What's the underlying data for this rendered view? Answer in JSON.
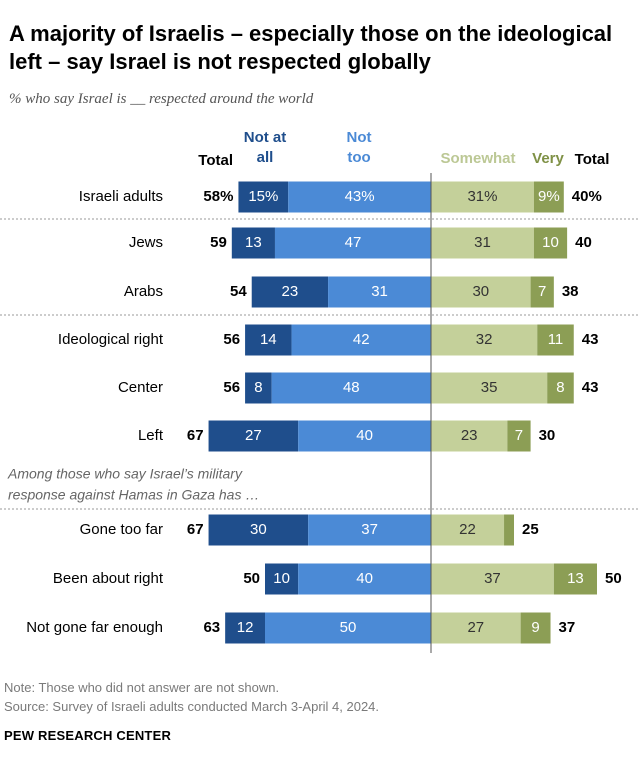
{
  "title": "A majority of Israelis – especially those on the ideological left – say Israel is not respected globally",
  "subtitle": "% who say Israel is __ respected around the world",
  "colors": {
    "not_at_all": "#1f4e8c",
    "not_too": "#4b8ad6",
    "somewhat": "#c4d09a",
    "very": "#8c9e55",
    "not_at_all_text": "#1f4e8c",
    "not_too_text": "#4b8ad6",
    "somewhat_text": "#bcc895",
    "very_text": "#7f9146"
  },
  "chart_data": {
    "type": "bar",
    "layout": "diverging-stacked",
    "headers": {
      "total_left": "Total",
      "not_at_all": [
        "Not at",
        "all"
      ],
      "not_too": [
        "Not",
        "too"
      ],
      "somewhat": "Somewhat",
      "very": "Very",
      "total_right": "Total"
    },
    "series": [
      {
        "name": "Not at all",
        "side": "negative"
      },
      {
        "name": "Not too",
        "side": "negative"
      },
      {
        "name": "Somewhat",
        "side": "positive"
      },
      {
        "name": "Very",
        "side": "positive"
      }
    ],
    "group_note": [
      "Among those who say Israel’s military",
      "response against Hamas in Gaza has …"
    ],
    "rows": [
      {
        "label": "Israeli adults",
        "not_at_all": 15,
        "not_too": 43,
        "somewhat": 31,
        "very": 9,
        "total_neg": 58,
        "total_pos": 40,
        "percent_labels": true
      },
      {
        "label": "Jews",
        "not_at_all": 13,
        "not_too": 47,
        "somewhat": 31,
        "very": 10,
        "total_neg": 59,
        "total_pos": 40
      },
      {
        "label": "Arabs",
        "not_at_all": 23,
        "not_too": 31,
        "somewhat": 30,
        "very": 7,
        "total_neg": 54,
        "total_pos": 38
      },
      {
        "label": "Ideological right",
        "not_at_all": 14,
        "not_too": 42,
        "somewhat": 32,
        "very": 11,
        "total_neg": 56,
        "total_pos": 43
      },
      {
        "label": "Center",
        "not_at_all": 8,
        "not_too": 48,
        "somewhat": 35,
        "very": 8,
        "total_neg": 56,
        "total_pos": 43
      },
      {
        "label": "Left",
        "not_at_all": 27,
        "not_too": 40,
        "somewhat": 23,
        "very": 7,
        "total_neg": 67,
        "total_pos": 30
      },
      {
        "label": "Gone too far",
        "not_at_all": 30,
        "not_too": 37,
        "somewhat": 22,
        "very": 3,
        "total_neg": 67,
        "total_pos": 25,
        "hide_very_label": true
      },
      {
        "label": "Been about right",
        "not_at_all": 10,
        "not_too": 40,
        "somewhat": 37,
        "very": 13,
        "total_neg": 50,
        "total_pos": 50
      },
      {
        "label": "Not gone far enough",
        "not_at_all": 12,
        "not_too": 50,
        "somewhat": 27,
        "very": 9,
        "total_neg": 63,
        "total_pos": 37
      }
    ]
  },
  "notes": {
    "note": "Note: Those who did not answer are not shown.",
    "source": "Source: Survey of Israeli adults conducted March 3-April 4, 2024."
  },
  "brand": "PEW RESEARCH CENTER"
}
